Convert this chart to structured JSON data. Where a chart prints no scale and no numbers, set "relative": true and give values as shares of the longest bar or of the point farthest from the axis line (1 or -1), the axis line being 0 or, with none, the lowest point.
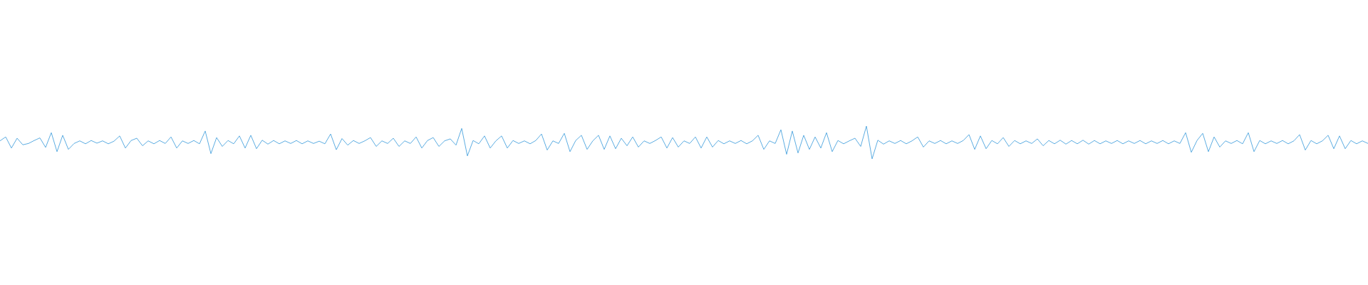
{
  "chart_data": {
    "type": "line",
    "relative": true,
    "color": "#5dade2",
    "categories": [
      null,
      null,
      null,
      null,
      null,
      null,
      null,
      null,
      null,
      null,
      null,
      null,
      null,
      null,
      null,
      null,
      null,
      null,
      null,
      null,
      null,
      null,
      null,
      null,
      null,
      null,
      null,
      null,
      null,
      null,
      null,
      null,
      null,
      null,
      null,
      null,
      null,
      null,
      null,
      null,
      null,
      null,
      null,
      null,
      null,
      null,
      null,
      null,
      null,
      null,
      null,
      null,
      null,
      null,
      null,
      null,
      null,
      null,
      null,
      null,
      null,
      null,
      null,
      null,
      null,
      null,
      null,
      null,
      null,
      null,
      null,
      null,
      null,
      null,
      null,
      null,
      null,
      null,
      null,
      null,
      null,
      null,
      null,
      null,
      null,
      null,
      null,
      null,
      null,
      null,
      null,
      null,
      null,
      null,
      null,
      null,
      null,
      null,
      null,
      null,
      null,
      null,
      null,
      null,
      null,
      null,
      null,
      null,
      null,
      null,
      null,
      null,
      null,
      null,
      null,
      null,
      null,
      null,
      null,
      null,
      null,
      null,
      null,
      null,
      null,
      null,
      null,
      null,
      null,
      null,
      null,
      null,
      null,
      null,
      null,
      null,
      null,
      null,
      null,
      null,
      null,
      null,
      null,
      null,
      null,
      null,
      null,
      null,
      null,
      null,
      null,
      null,
      null,
      null,
      null,
      null,
      null,
      null,
      null,
      null,
      null,
      null,
      null,
      null,
      null,
      null,
      null,
      null,
      null,
      null,
      null,
      null,
      null,
      null,
      null,
      null,
      null,
      null,
      null,
      null,
      null,
      null,
      null,
      null,
      null,
      null,
      null,
      null,
      null,
      null,
      null,
      null,
      null,
      null,
      null,
      null,
      null,
      null,
      null,
      null,
      null,
      null,
      null,
      null,
      null,
      null,
      null,
      null,
      null,
      null,
      null,
      null,
      null,
      null,
      null,
      null,
      null,
      null,
      null,
      null,
      null,
      null,
      null,
      null,
      null,
      null,
      null,
      null,
      null,
      null,
      null,
      null,
      null,
      null,
      null,
      null,
      null,
      null,
      null,
      null,
      null
    ],
    "values": [
      0.55,
      0.67,
      0.33,
      0.63,
      0.43,
      0.47,
      0.56,
      0.64,
      0.35,
      0.8,
      0.22,
      0.72,
      0.29,
      0.47,
      0.55,
      0.46,
      0.56,
      0.48,
      0.55,
      0.46,
      0.54,
      0.7,
      0.33,
      0.56,
      0.63,
      0.4,
      0.55,
      0.46,
      0.56,
      0.47,
      0.67,
      0.33,
      0.55,
      0.47,
      0.56,
      0.46,
      0.85,
      0.16,
      0.65,
      0.38,
      0.56,
      0.46,
      0.7,
      0.33,
      0.72,
      0.31,
      0.57,
      0.45,
      0.56,
      0.46,
      0.55,
      0.47,
      0.56,
      0.46,
      0.55,
      0.47,
      0.54,
      0.46,
      0.76,
      0.28,
      0.62,
      0.42,
      0.56,
      0.47,
      0.55,
      0.65,
      0.38,
      0.55,
      0.47,
      0.63,
      0.38,
      0.55,
      0.47,
      0.67,
      0.33,
      0.56,
      0.65,
      0.38,
      0.55,
      0.61,
      0.42,
      0.93,
      0.09,
      0.56,
      0.46,
      0.7,
      0.33,
      0.55,
      0.7,
      0.33,
      0.56,
      0.47,
      0.55,
      0.46,
      0.56,
      0.76,
      0.27,
      0.55,
      0.47,
      0.78,
      0.22,
      0.56,
      0.72,
      0.29,
      0.55,
      0.72,
      0.29,
      0.7,
      0.31,
      0.63,
      0.4,
      0.67,
      0.36,
      0.55,
      0.47,
      0.56,
      0.67,
      0.33,
      0.65,
      0.36,
      0.55,
      0.47,
      0.67,
      0.33,
      0.67,
      0.36,
      0.56,
      0.46,
      0.55,
      0.47,
      0.56,
      0.46,
      0.55,
      0.72,
      0.29,
      0.55,
      0.47,
      0.89,
      0.14,
      0.85,
      0.18,
      0.72,
      0.29,
      0.67,
      0.33,
      0.8,
      0.22,
      0.56,
      0.46,
      0.55,
      0.63,
      0.38,
      1,
      0,
      0.57,
      0.45,
      0.55,
      0.47,
      0.56,
      0.46,
      0.55,
      0.67,
      0.36,
      0.55,
      0.47,
      0.56,
      0.46,
      0.55,
      0.47,
      0.56,
      0.74,
      0.29,
      0.7,
      0.31,
      0.56,
      0.46,
      0.65,
      0.38,
      0.56,
      0.46,
      0.55,
      0.47,
      0.61,
      0.4,
      0.56,
      0.46,
      0.57,
      0.45,
      0.56,
      0.46,
      0.57,
      0.45,
      0.56,
      0.46,
      0.55,
      0.47,
      0.56,
      0.46,
      0.55,
      0.47,
      0.56,
      0.46,
      0.55,
      0.47,
      0.56,
      0.46,
      0.55,
      0.47,
      0.8,
      0.2,
      0.56,
      0.78,
      0.22,
      0.67,
      0.36,
      0.55,
      0.47,
      0.56,
      0.46,
      0.8,
      0.22,
      0.56,
      0.46,
      0.55,
      0.47,
      0.56,
      0.46,
      0.55,
      0.74,
      0.27,
      0.56,
      0.46,
      0.55,
      0.72,
      0.31,
      0.7,
      0.31,
      0.56,
      0.46,
      0.55,
      0.47
    ]
  }
}
